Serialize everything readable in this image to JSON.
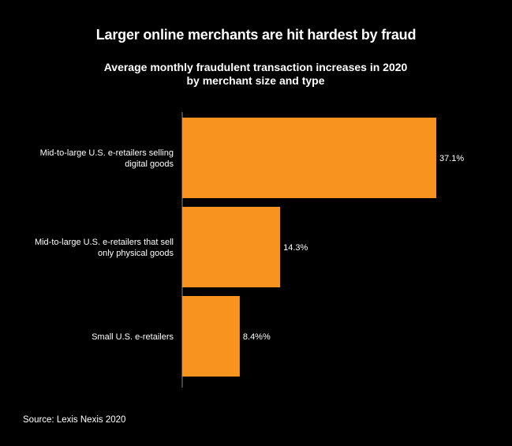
{
  "chart_data": {
    "type": "bar",
    "orientation": "horizontal",
    "title": "Larger online merchants are hit hardest by fraud",
    "subtitle": "Average monthly fraudulent transaction increases in 2020 by merchant size and type",
    "categories": [
      [
        "Mid-to-large U.S. e-retailers selling",
        "digital goods"
      ],
      [
        "Mid-to-large U.S. e-retailers that sell",
        "only physical goods"
      ],
      [
        "Small U.S. e-retailers"
      ]
    ],
    "values": [
      37.1,
      14.3,
      8.4
    ],
    "data_labels": [
      "37.1%",
      "14.3%",
      "8.4%%"
    ],
    "source": "Source: Lexis Nexis 2020",
    "bar_color": "#f7931e",
    "background": "#000000",
    "text_color": "#ffffff",
    "grid": false,
    "legend": "none"
  }
}
